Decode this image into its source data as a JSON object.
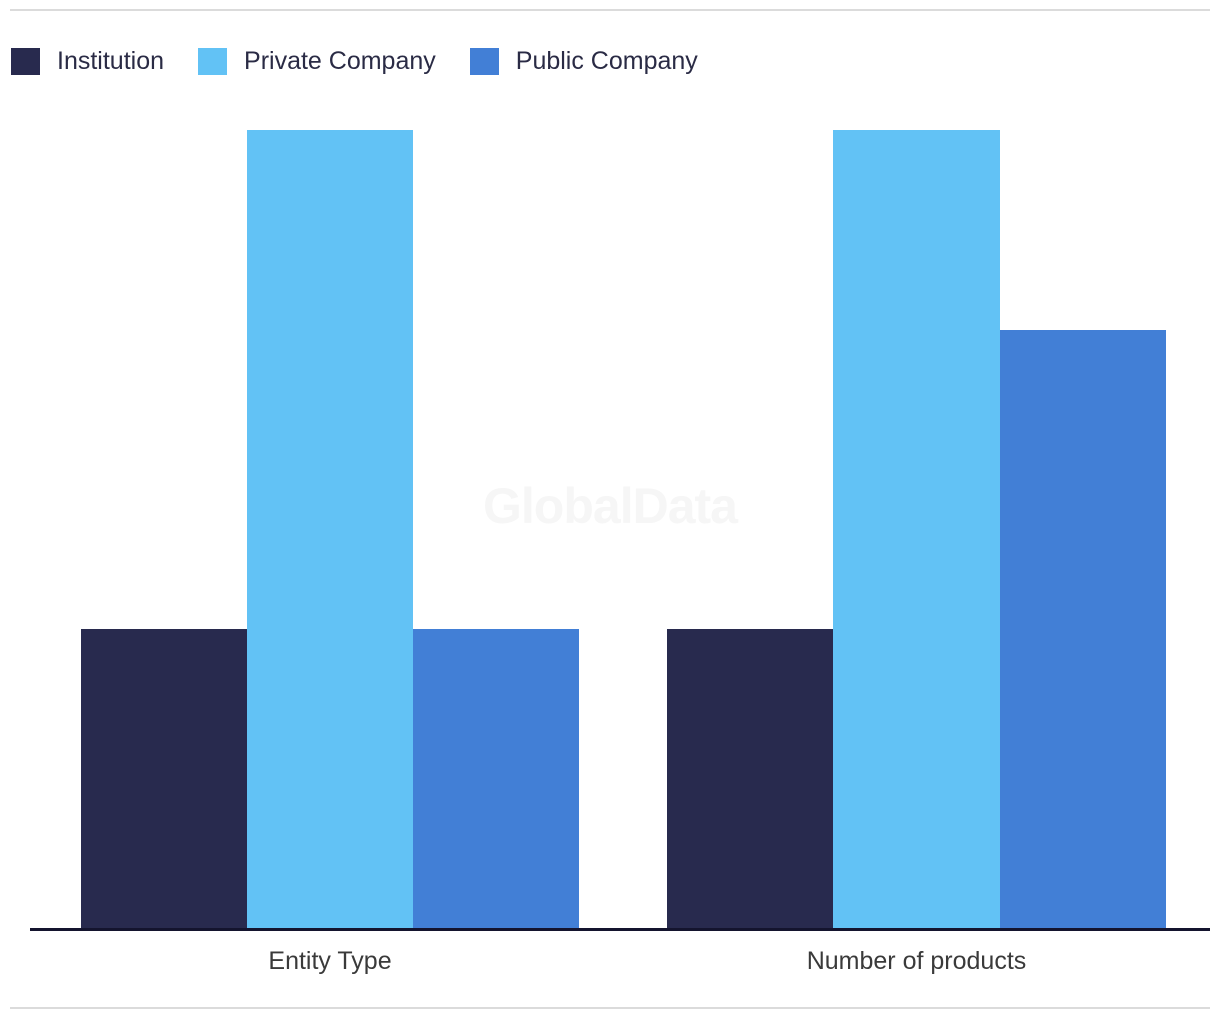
{
  "watermark": {
    "text": "GlobalData"
  },
  "legend": {
    "items": [
      {
        "label": "Institution",
        "color": "#282A4E"
      },
      {
        "label": "Private Company",
        "color": "#62C2F5"
      },
      {
        "label": "Public Company",
        "color": "#427FD6"
      }
    ]
  },
  "chart_data": {
    "type": "bar",
    "categories": [
      "Entity Type",
      "Number of products"
    ],
    "series": [
      {
        "name": "Institution",
        "color": "#282A4E",
        "values": [
          3,
          3
        ]
      },
      {
        "name": "Private Company",
        "color": "#62C2F5",
        "values": [
          8,
          8
        ]
      },
      {
        "name": "Public Company",
        "color": "#427FD6",
        "values": [
          3,
          6
        ]
      }
    ],
    "title": "",
    "xlabel": "",
    "ylabel": "",
    "ylim": [
      0,
      8
    ],
    "y_axis_visible": false,
    "gridlines": false,
    "legend_position": "top-left",
    "watermark": "GlobalData"
  },
  "colors": {
    "axis_line": "#14142E",
    "divider": "#DBDBDB",
    "category_label": "#3A3A3A",
    "legend_label": "#2A2B45",
    "watermark": "#F6F6F6",
    "background": "#FFFFFF"
  }
}
